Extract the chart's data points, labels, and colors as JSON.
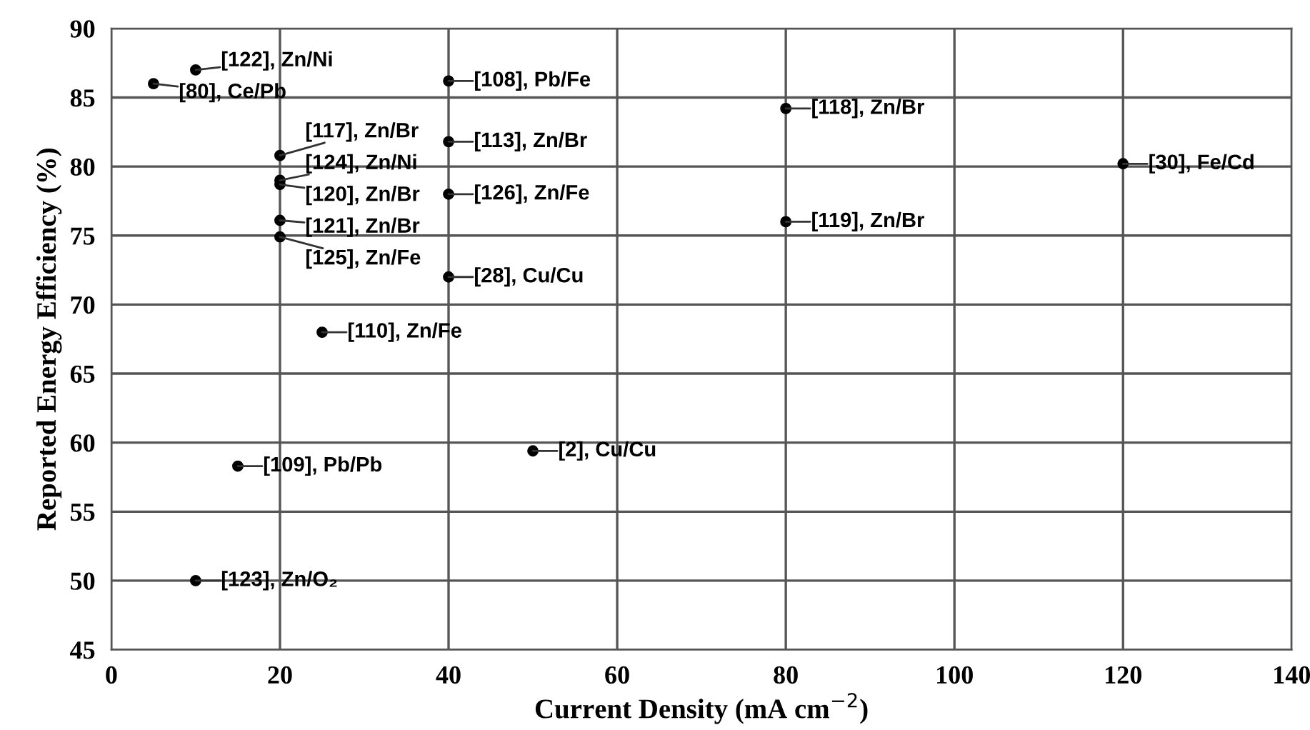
{
  "chart_data": {
    "type": "scatter",
    "xlabel": "Current Density (mA cm$^{−2}$)",
    "ylabel": "Reported Energy Efficiency (%)",
    "xlim": [
      0,
      140
    ],
    "xticks": [
      0,
      20,
      40,
      60,
      80,
      100,
      120,
      140
    ],
    "ylim": [
      45,
      90
    ],
    "yticks": [
      45,
      50,
      55,
      60,
      65,
      70,
      75,
      80,
      85,
      90
    ],
    "grid": true,
    "marker": "circle",
    "series": [
      {
        "color": "#000000",
        "x": [
          10,
          20,
          5,
          40,
          20,
          20,
          20,
          40,
          80,
          80,
          20,
          40,
          25,
          40,
          50,
          120,
          15,
          10
        ],
        "values": [
          87.0,
          79.0,
          86.0,
          86.2,
          80.8,
          78.7,
          76.1,
          81.8,
          84.2,
          76.0,
          74.9,
          78.0,
          68.0,
          72.0,
          59.4,
          80.2,
          58.3,
          50.0
        ]
      }
    ],
    "annotations": [
      {
        "text": "[122], Zn/Ni",
        "x": 10,
        "y": 87.0
      },
      {
        "text": "[124], Zn/Ni",
        "x": 20,
        "y": 79.0
      },
      {
        "text": "[80], Ce/Pb",
        "x": 5,
        "y": 86.0
      },
      {
        "text": "[108], Pb/Fe",
        "x": 40,
        "y": 86.2
      },
      {
        "text": "[117], Zn/Br",
        "x": 20,
        "y": 80.8
      },
      {
        "text": "[120], Zn/Br",
        "x": 20,
        "y": 78.7
      },
      {
        "text": "[121], Zn/Br",
        "x": 20,
        "y": 76.1
      },
      {
        "text": "[113], Zn/Br",
        "x": 40,
        "y": 81.8
      },
      {
        "text": "[118], Zn/Br",
        "x": 80,
        "y": 84.2
      },
      {
        "text": "[119], Zn/Br",
        "x": 80,
        "y": 76.0
      },
      {
        "text": "[125], Zn/Fe",
        "x": 20,
        "y": 74.9
      },
      {
        "text": "[126], Zn/Fe",
        "x": 40,
        "y": 78.0
      },
      {
        "text": "[110], Zn/Fe",
        "x": 25,
        "y": 68.0
      },
      {
        "text": "[28], Cu/Cu",
        "x": 40,
        "y": 72.0
      },
      {
        "text": "[2], Cu/Cu",
        "x": 50,
        "y": 59.4
      },
      {
        "text": "[30], Fe/Cd",
        "x": 120,
        "y": 80.2
      },
      {
        "text": "[109], Pb/Pb",
        "x": 15,
        "y": 58.3
      },
      {
        "text": "[123], Zn/O₂",
        "x": 10,
        "y": 50.0
      }
    ]
  }
}
